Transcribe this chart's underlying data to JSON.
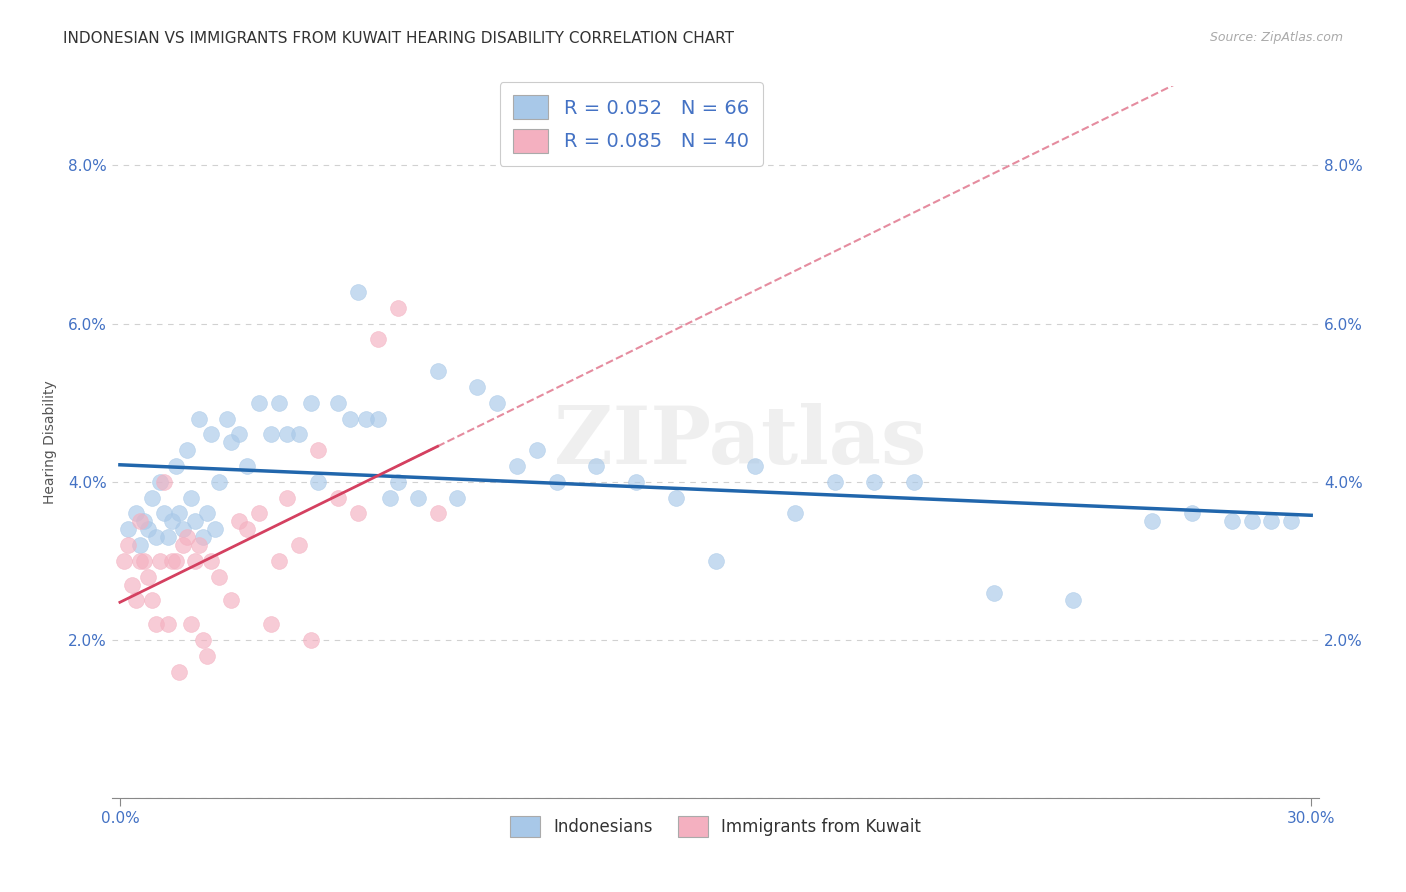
{
  "title": "INDONESIAN VS IMMIGRANTS FROM KUWAIT HEARING DISABILITY CORRELATION CHART",
  "source": "Source: ZipAtlas.com",
  "ylabel": "Hearing Disability",
  "xlabel": "",
  "xlim": [
    -0.002,
    0.302
  ],
  "ylim": [
    0.0,
    0.09
  ],
  "xticks": [
    0.0,
    0.3
  ],
  "xtick_labels": [
    "0.0%",
    "30.0%"
  ],
  "yticks": [
    0.0,
    0.02,
    0.04,
    0.06,
    0.08
  ],
  "ytick_labels": [
    "",
    "2.0%",
    "4.0%",
    "6.0%",
    "8.0%"
  ],
  "blue_color": "#a8c8e8",
  "pink_color": "#f4b0c0",
  "blue_line_color": "#2166ac",
  "pink_line_color": "#d44060",
  "legend_blue_label": "R = 0.052   N = 66",
  "legend_pink_label": "R = 0.085   N = 40",
  "legend_bottom_blue": "Indonesians",
  "legend_bottom_pink": "Immigrants from Kuwait",
  "indonesians_x": [
    0.002,
    0.004,
    0.005,
    0.006,
    0.007,
    0.008,
    0.009,
    0.01,
    0.011,
    0.012,
    0.013,
    0.014,
    0.015,
    0.016,
    0.017,
    0.018,
    0.019,
    0.02,
    0.021,
    0.022,
    0.023,
    0.024,
    0.025,
    0.027,
    0.028,
    0.03,
    0.032,
    0.035,
    0.038,
    0.04,
    0.042,
    0.045,
    0.048,
    0.05,
    0.055,
    0.058,
    0.06,
    0.062,
    0.065,
    0.068,
    0.07,
    0.075,
    0.08,
    0.085,
    0.09,
    0.095,
    0.1,
    0.105,
    0.11,
    0.12,
    0.13,
    0.14,
    0.15,
    0.16,
    0.17,
    0.18,
    0.19,
    0.2,
    0.22,
    0.24,
    0.26,
    0.27,
    0.28,
    0.285,
    0.29,
    0.295
  ],
  "indonesians_y": [
    0.034,
    0.036,
    0.032,
    0.035,
    0.034,
    0.038,
    0.033,
    0.04,
    0.036,
    0.033,
    0.035,
    0.042,
    0.036,
    0.034,
    0.044,
    0.038,
    0.035,
    0.048,
    0.033,
    0.036,
    0.046,
    0.034,
    0.04,
    0.048,
    0.045,
    0.046,
    0.042,
    0.05,
    0.046,
    0.05,
    0.046,
    0.046,
    0.05,
    0.04,
    0.05,
    0.048,
    0.064,
    0.048,
    0.048,
    0.038,
    0.04,
    0.038,
    0.054,
    0.038,
    0.052,
    0.05,
    0.042,
    0.044,
    0.04,
    0.042,
    0.04,
    0.038,
    0.03,
    0.042,
    0.036,
    0.04,
    0.04,
    0.04,
    0.026,
    0.025,
    0.035,
    0.036,
    0.035,
    0.035,
    0.035,
    0.035
  ],
  "kuwait_x": [
    0.001,
    0.002,
    0.003,
    0.004,
    0.005,
    0.005,
    0.006,
    0.007,
    0.008,
    0.009,
    0.01,
    0.011,
    0.012,
    0.013,
    0.014,
    0.015,
    0.016,
    0.017,
    0.018,
    0.019,
    0.02,
    0.021,
    0.022,
    0.023,
    0.025,
    0.028,
    0.03,
    0.032,
    0.035,
    0.038,
    0.04,
    0.042,
    0.045,
    0.048,
    0.05,
    0.055,
    0.06,
    0.065,
    0.07,
    0.08
  ],
  "kuwait_y": [
    0.03,
    0.032,
    0.027,
    0.025,
    0.03,
    0.035,
    0.03,
    0.028,
    0.025,
    0.022,
    0.03,
    0.04,
    0.022,
    0.03,
    0.03,
    0.016,
    0.032,
    0.033,
    0.022,
    0.03,
    0.032,
    0.02,
    0.018,
    0.03,
    0.028,
    0.025,
    0.035,
    0.034,
    0.036,
    0.022,
    0.03,
    0.038,
    0.032,
    0.02,
    0.044,
    0.038,
    0.036,
    0.058,
    0.062,
    0.036
  ],
  "watermark": "ZIPatlas",
  "background_color": "#ffffff",
  "grid_color": "#cccccc",
  "title_fontsize": 11,
  "axis_label_fontsize": 10,
  "tick_fontsize": 11
}
